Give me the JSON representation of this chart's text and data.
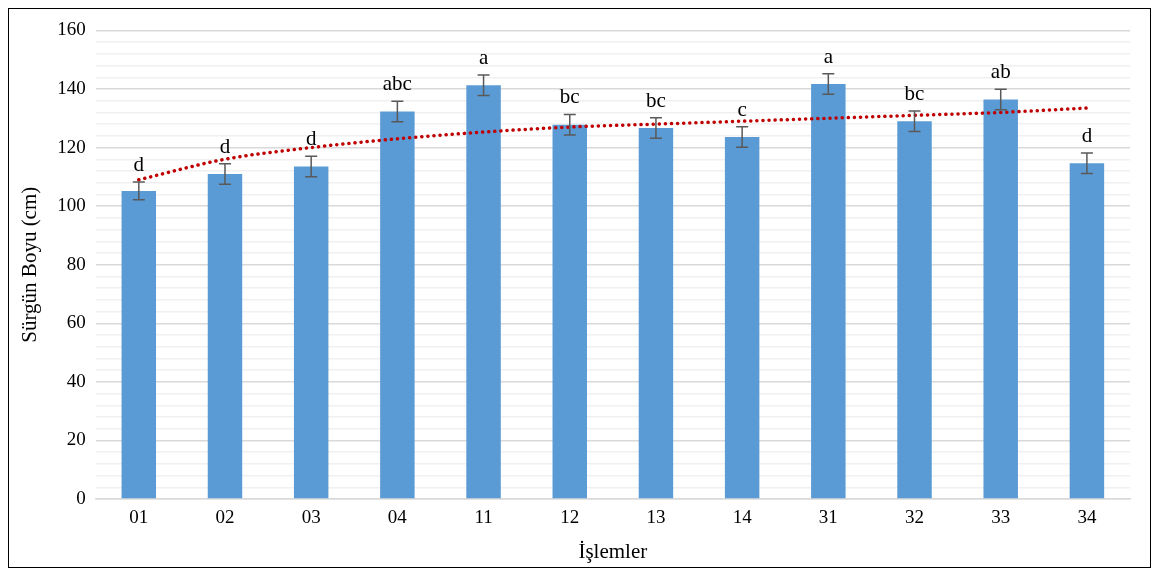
{
  "chart_data": {
    "type": "bar",
    "xlabel": "İşlemler",
    "ylabel": "Sürgün Boyu (cm)",
    "categories": [
      "01",
      "02",
      "03",
      "04",
      "11",
      "12",
      "13",
      "14",
      "31",
      "32",
      "33",
      "34"
    ],
    "series": [
      {
        "color": "#5b9bd5",
        "values": [
          105.2,
          111,
          113.5,
          132.3,
          141.3,
          127.8,
          126.7,
          123.6,
          141.7,
          129,
          136.4,
          114.6
        ],
        "errors": [
          3,
          3.5,
          3.5,
          3.5,
          3.5,
          3.5,
          3.5,
          3.5,
          3.5,
          3.5,
          3.5,
          3.5
        ]
      },
      {
        "type": "line",
        "color": "#c00000",
        "line_style": "dotted",
        "marker": "none",
        "values": [
          109,
          116,
          120,
          123,
          125.3,
          127,
          128,
          129,
          130,
          131,
          132,
          133.5
        ]
      }
    ],
    "ylim": [
      0,
      160
    ],
    "yticks": [
      0,
      {
        "value": 4,
        "label": null
      },
      {
        "value": 8,
        "label": null
      },
      {
        "value": 12,
        "label": null
      },
      {
        "value": 16,
        "label": null
      },
      20,
      {
        "value": 24,
        "label": null
      },
      {
        "value": 28,
        "label": null
      },
      {
        "value": 32,
        "label": null
      },
      {
        "value": 36,
        "label": null
      },
      40,
      {
        "value": 44,
        "label": null
      },
      {
        "value": 48,
        "label": null
      },
      {
        "value": 52,
        "label": null
      },
      {
        "value": 56,
        "label": null
      },
      60,
      {
        "value": 64,
        "label": null
      },
      {
        "value": 68,
        "label": null
      },
      {
        "value": 72,
        "label": null
      },
      {
        "value": 76,
        "label": null
      },
      80,
      {
        "value": 84,
        "label": null
      },
      {
        "value": 88,
        "label": null
      },
      {
        "value": 92,
        "label": null
      },
      {
        "value": 96,
        "label": null
      },
      100,
      {
        "value": 104,
        "label": null
      },
      {
        "value": 108,
        "label": null
      },
      {
        "value": 112,
        "label": null
      },
      {
        "value": 116,
        "label": null
      },
      120,
      {
        "value": 124,
        "label": null
      },
      {
        "value": 128,
        "label": null
      },
      {
        "value": 132,
        "label": null
      },
      {
        "value": 136,
        "label": null
      },
      140,
      {
        "value": 144,
        "label": null
      },
      {
        "value": 148,
        "label": null
      },
      {
        "value": 152,
        "label": null
      },
      {
        "value": 156,
        "label": null
      },
      160
    ],
    "grid": "y",
    "legend": false,
    "annotations": [
      {
        "text": "d",
        "x": "01",
        "y": 108.2
      },
      {
        "text": "d",
        "x": "02",
        "y": 114.5
      },
      {
        "text": "d",
        "x": "03",
        "y": 117
      },
      {
        "text": "abc",
        "x": "04",
        "y": 135.8
      },
      {
        "text": "a",
        "x": "11",
        "y": 144.8
      },
      {
        "text": "bc",
        "x": "12",
        "y": 131.3
      },
      {
        "text": "bc",
        "x": "13",
        "y": 130.2
      },
      {
        "text": "c",
        "x": "14",
        "y": 127.1
      },
      {
        "text": "a",
        "x": "31",
        "y": 145.2
      },
      {
        "text": "bc",
        "x": "32",
        "y": 132.5
      },
      {
        "text": "ab",
        "x": "33",
        "y": 139.9
      },
      {
        "text": "d",
        "x": "34",
        "y": 118.1
      }
    ]
  }
}
